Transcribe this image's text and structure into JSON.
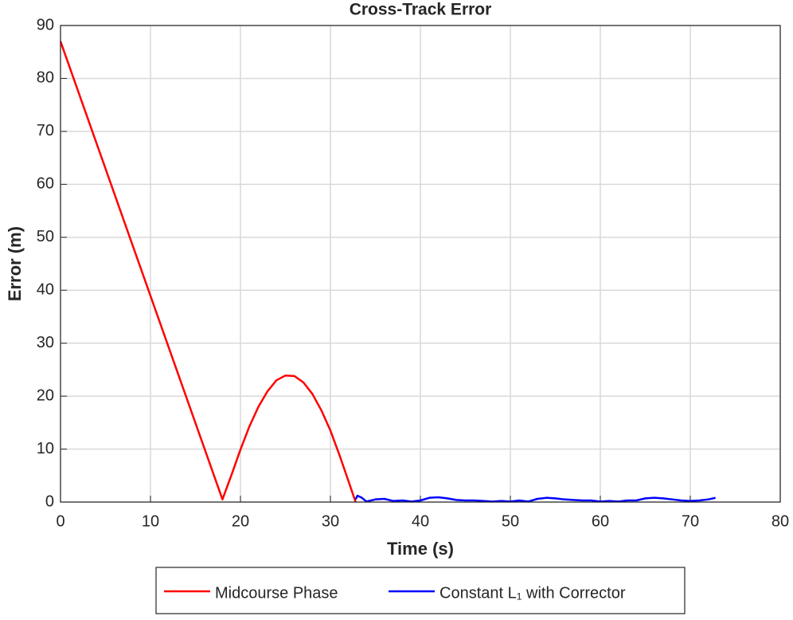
{
  "chart_data": {
    "type": "line",
    "title": "Cross-Track Error",
    "x_label": "Time (s)",
    "y_label": "Error (m)",
    "xlim": [
      0,
      80
    ],
    "xticks": [
      0,
      10,
      20,
      30,
      40,
      50,
      60,
      70,
      80
    ],
    "ylim": [
      0,
      90
    ],
    "yticks": [
      0,
      10,
      20,
      30,
      40,
      50,
      60,
      70,
      80,
      90
    ],
    "grid": true,
    "legend": "bottom",
    "series": [
      {
        "name": "Midcourse Phase",
        "color": "#ff0000",
        "x": [
          0,
          18,
          19,
          20,
          21,
          22,
          23,
          24,
          25,
          26,
          27,
          28,
          29,
          30,
          31,
          32,
          32.8
        ],
        "values": [
          87,
          0.5,
          5.1,
          9.9,
          14.3,
          18,
          20.9,
          23,
          23.9,
          23.8,
          22.6,
          20.4,
          17.3,
          13.5,
          8.9,
          4,
          0
        ]
      },
      {
        "name": "Constant L₁ with Corrector",
        "color": "#0000ff",
        "x": [
          32.8,
          33,
          33.5,
          34,
          35,
          36,
          37,
          38,
          39,
          40,
          41,
          42,
          43,
          44,
          45,
          46,
          47,
          48,
          49,
          50,
          51,
          52,
          53,
          54,
          55,
          56,
          57,
          58,
          59,
          60,
          61,
          62,
          63,
          64,
          65,
          66,
          67,
          68,
          69,
          70,
          71,
          72,
          72.8
        ],
        "values": [
          0.5,
          1.2,
          0.8,
          0.1,
          0.5,
          0.6,
          0.2,
          0.3,
          0.1,
          0.3,
          0.8,
          0.9,
          0.7,
          0.4,
          0.3,
          0.3,
          0.2,
          0.1,
          0.2,
          0.1,
          0.3,
          0.1,
          0.6,
          0.8,
          0.7,
          0.5,
          0.4,
          0.3,
          0.3,
          0.1,
          0.2,
          0.1,
          0.3,
          0.3,
          0.7,
          0.8,
          0.7,
          0.5,
          0.3,
          0.2,
          0.3,
          0.5,
          0.8
        ]
      }
    ]
  }
}
